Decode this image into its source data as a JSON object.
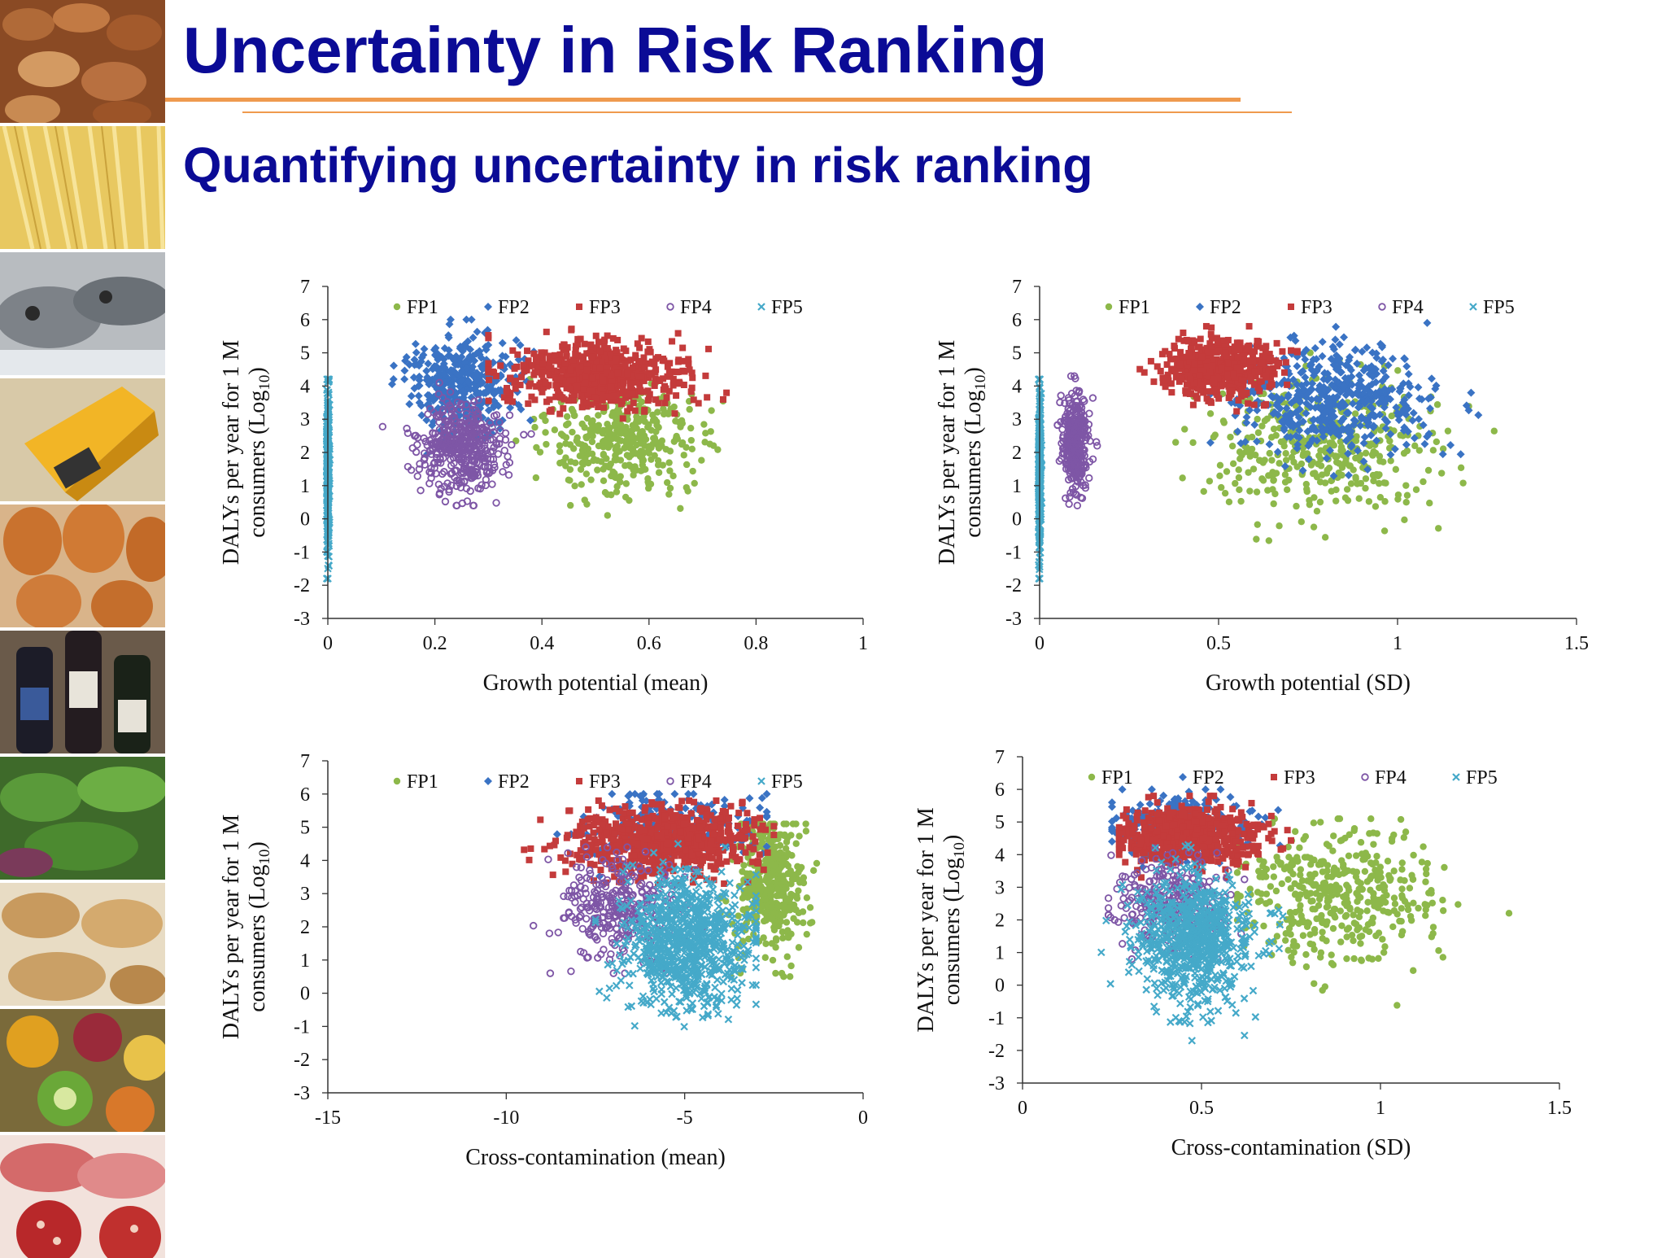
{
  "slide": {
    "title": "Uncertainty in Risk Ranking",
    "subtitle": "Quantifying uncertainty in risk ranking"
  },
  "colors": {
    "title": "#0b0b96",
    "rule": "#ef9a4e",
    "FP1": "#8db84a",
    "FP2": "#3a73c4",
    "FP3": "#c43b3b",
    "FP4": "#7e56a6",
    "FP5": "#45a9c9"
  },
  "side_images": [
    "nuts",
    "pasta",
    "fish",
    "cheese",
    "eggs",
    "wine",
    "vegetables",
    "bread",
    "fruit",
    "cured-meat"
  ],
  "chart_data": [
    {
      "type": "scatter",
      "xlabel": "Growth potential (mean)",
      "ylabel_line1": "DALYs per year for 1 M",
      "ylabel_line2": "consumers (Log",
      "ylabel_sub": "10",
      "ylabel_close": ")",
      "xlim": [
        0,
        1
      ],
      "ylim": [
        -3,
        7
      ],
      "xticks": [
        0,
        0.2,
        0.4,
        0.6,
        0.8,
        1
      ],
      "xtick_labels": [
        "0",
        "0.2",
        "0.4",
        "0.6",
        "0.8",
        "1"
      ],
      "yticks": [
        -3,
        -2,
        -1,
        0,
        1,
        2,
        3,
        4,
        5,
        6,
        7
      ],
      "series": [
        {
          "name": "FP1",
          "marker": "circle",
          "cluster": {
            "cx": 0.55,
            "cy": 2.5,
            "sx": 0.07,
            "sy": 0.85,
            "n": 380,
            "xmin": 0.35,
            "xmax": 0.76,
            "ymin": -0.8,
            "ymax": 4.2
          }
        },
        {
          "name": "FP2",
          "marker": "diamond",
          "cluster": {
            "cx": 0.25,
            "cy": 4.1,
            "sx": 0.055,
            "sy": 0.75,
            "n": 380,
            "xmin": 0.12,
            "xmax": 0.42,
            "ymin": -0.3,
            "ymax": 6.0
          }
        },
        {
          "name": "FP3",
          "marker": "square",
          "cluster": {
            "cx": 0.5,
            "cy": 4.35,
            "sx": 0.085,
            "sy": 0.5,
            "n": 600,
            "xmin": 0.3,
            "xmax": 0.87,
            "ymin": 3.0,
            "ymax": 5.9
          }
        },
        {
          "name": "FP4",
          "marker": "ring",
          "cluster": {
            "cx": 0.25,
            "cy": 2.2,
            "sx": 0.04,
            "sy": 0.65,
            "n": 420,
            "xmin": 0.1,
            "xmax": 0.38,
            "ymin": 0.4,
            "ymax": 4.1
          }
        },
        {
          "name": "FP5",
          "marker": "cross",
          "cluster": {
            "cx": 0.0,
            "cy": 1.5,
            "sx": 0.0015,
            "sy": 1.3,
            "n": 300,
            "xmin": -0.002,
            "xmax": 0.004,
            "ymin": -1.8,
            "ymax": 4.2
          }
        }
      ]
    },
    {
      "type": "scatter",
      "xlabel": "Growth potential (SD)",
      "ylabel_line1": "DALYs per year for 1 M",
      "ylabel_line2": "consumers (Log",
      "ylabel_sub": "10",
      "ylabel_close": ")",
      "xlim": [
        0,
        1.5
      ],
      "ylim": [
        -3,
        7
      ],
      "xticks": [
        0,
        0.5,
        1,
        1.5
      ],
      "xtick_labels": [
        "0",
        "0.5",
        "1",
        "1.5"
      ],
      "yticks": [
        -3,
        -2,
        -1,
        0,
        1,
        2,
        3,
        4,
        5,
        6,
        7
      ],
      "series": [
        {
          "name": "FP1",
          "marker": "circle",
          "cluster": {
            "cx": 0.78,
            "cy": 2.2,
            "sx": 0.16,
            "sy": 1.0,
            "n": 400,
            "xmin": 0.38,
            "xmax": 1.27,
            "ymin": -0.8,
            "ymax": 5.0
          }
        },
        {
          "name": "FP2",
          "marker": "diamond",
          "cluster": {
            "cx": 0.82,
            "cy": 3.7,
            "sx": 0.13,
            "sy": 0.8,
            "n": 500,
            "xmin": 0.33,
            "xmax": 1.3,
            "ymin": -0.3,
            "ymax": 5.9
          }
        },
        {
          "name": "FP3",
          "marker": "square",
          "cluster": {
            "cx": 0.5,
            "cy": 4.5,
            "sx": 0.08,
            "sy": 0.45,
            "n": 500,
            "xmin": 0.28,
            "xmax": 0.72,
            "ymin": 2.5,
            "ymax": 5.8
          }
        },
        {
          "name": "FP4",
          "marker": "ring",
          "cluster": {
            "cx": 0.1,
            "cy": 2.3,
            "sx": 0.018,
            "sy": 0.7,
            "n": 350,
            "xmin": 0.05,
            "xmax": 0.17,
            "ymin": 0.4,
            "ymax": 4.3
          }
        },
        {
          "name": "FP5",
          "marker": "cross",
          "cluster": {
            "cx": 0.0,
            "cy": 1.5,
            "sx": 0.002,
            "sy": 1.3,
            "n": 300,
            "xmin": -0.003,
            "xmax": 0.006,
            "ymin": -1.8,
            "ymax": 4.2
          }
        }
      ]
    },
    {
      "type": "scatter",
      "xlabel": "Cross-contamination (mean)",
      "ylabel_line1": "DALYs per year for 1 M",
      "ylabel_line2": "consumers (Log",
      "ylabel_sub": "10",
      "ylabel_close": ")",
      "xlim": [
        -15,
        0
      ],
      "ylim": [
        -3,
        7
      ],
      "xticks": [
        -15,
        -10,
        -5,
        0
      ],
      "xtick_labels": [
        "-15",
        "-10",
        "-5",
        "0"
      ],
      "yticks": [
        -3,
        -2,
        -1,
        0,
        1,
        2,
        3,
        4,
        5,
        6,
        7
      ],
      "series": [
        {
          "name": "FP1",
          "marker": "circle",
          "cluster": {
            "cx": -2.6,
            "cy": 3.3,
            "sx": 0.5,
            "sy": 1.0,
            "n": 420,
            "xmin": -4.0,
            "xmax": -1.3,
            "ymin": 0.5,
            "ymax": 5.1
          }
        },
        {
          "name": "FP2",
          "marker": "diamond",
          "cluster": {
            "cx": -5.5,
            "cy": 5.0,
            "sx": 1.2,
            "sy": 0.5,
            "n": 250,
            "xmin": -10,
            "xmax": -2.7,
            "ymin": 3.0,
            "ymax": 6.0
          }
        },
        {
          "name": "FP3",
          "marker": "square",
          "cluster": {
            "cx": -5.6,
            "cy": 4.6,
            "sx": 1.3,
            "sy": 0.5,
            "n": 700,
            "xmin": -9.5,
            "xmax": -2.5,
            "ymin": 3.3,
            "ymax": 5.8
          }
        },
        {
          "name": "FP4",
          "marker": "ring",
          "cluster": {
            "cx": -6.8,
            "cy": 2.6,
            "sx": 0.8,
            "sy": 0.8,
            "n": 300,
            "xmin": -9.5,
            "xmax": -4.5,
            "ymin": 0.6,
            "ymax": 4.4
          }
        },
        {
          "name": "FP5",
          "marker": "cross",
          "cluster": {
            "cx": -5.0,
            "cy": 1.5,
            "sx": 0.9,
            "sy": 1.0,
            "n": 800,
            "xmin": -7.5,
            "xmax": -3.0,
            "ymin": -1.7,
            "ymax": 4.5
          }
        }
      ]
    },
    {
      "type": "scatter",
      "xlabel": "Cross-contamination (SD)",
      "ylabel_line1": "DALYs per year for 1 M",
      "ylabel_line2": "consumers (Log",
      "ylabel_sub": "10",
      "ylabel_close": ")",
      "xlim": [
        0,
        1.5
      ],
      "ylim": [
        -3,
        7
      ],
      "xticks": [
        0,
        0.5,
        1,
        1.5
      ],
      "xtick_labels": [
        "0",
        "0.5",
        "1",
        "1.5"
      ],
      "yticks": [
        -3,
        -2,
        -1,
        0,
        1,
        2,
        3,
        4,
        5,
        6,
        7
      ],
      "series": [
        {
          "name": "FP1",
          "marker": "circle",
          "cluster": {
            "cx": 0.88,
            "cy": 2.8,
            "sx": 0.14,
            "sy": 1.0,
            "n": 420,
            "xmin": 0.6,
            "xmax": 1.42,
            "ymin": -0.8,
            "ymax": 5.1
          }
        },
        {
          "name": "FP2",
          "marker": "diamond",
          "cluster": {
            "cx": 0.45,
            "cy": 4.9,
            "sx": 0.1,
            "sy": 0.5,
            "n": 250,
            "xmin": 0.25,
            "xmax": 0.8,
            "ymin": 3.0,
            "ymax": 6.0
          }
        },
        {
          "name": "FP3",
          "marker": "square",
          "cluster": {
            "cx": 0.47,
            "cy": 4.6,
            "sx": 0.1,
            "sy": 0.45,
            "n": 650,
            "xmin": 0.27,
            "xmax": 0.75,
            "ymin": 3.3,
            "ymax": 5.8
          }
        },
        {
          "name": "FP4",
          "marker": "ring",
          "cluster": {
            "cx": 0.42,
            "cy": 2.5,
            "sx": 0.08,
            "sy": 0.7,
            "n": 300,
            "xmin": 0.24,
            "xmax": 0.62,
            "ymin": 0.8,
            "ymax": 4.2
          }
        },
        {
          "name": "FP5",
          "marker": "cross",
          "cluster": {
            "cx": 0.48,
            "cy": 1.4,
            "sx": 0.08,
            "sy": 1.0,
            "n": 750,
            "xmin": 0.22,
            "xmax": 0.77,
            "ymin": -1.7,
            "ymax": 4.3
          }
        }
      ]
    }
  ]
}
